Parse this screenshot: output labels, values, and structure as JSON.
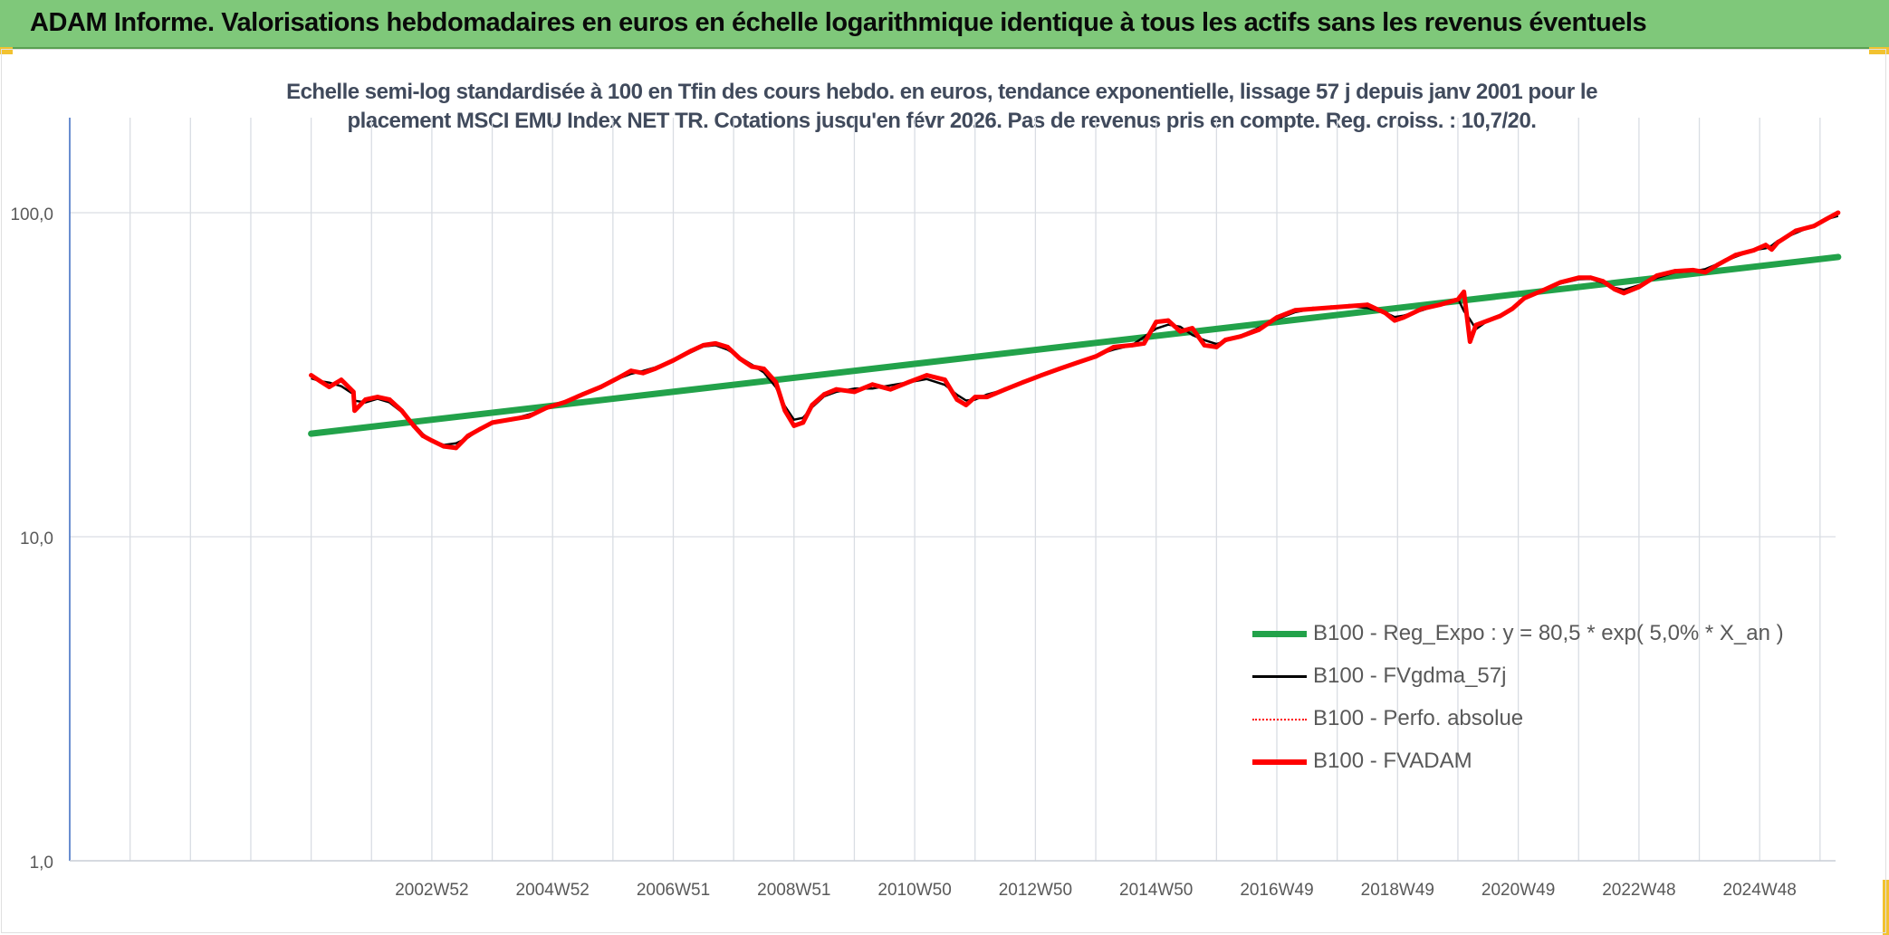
{
  "header": {
    "title": "ADAM Informe. Valorisations hebdomadaires en euros en échelle logarithmique identique à tous les actifs sans les revenus éventuels"
  },
  "colors": {
    "header_bg": "#7fc87a",
    "corner_accent": "#f2c230",
    "trend_green": "#22a24a",
    "smooth_black": "#000000",
    "adam_red": "#ff0000",
    "title_text": "#404a5c",
    "gridline": "#d9dde3",
    "y_axis_line": "#4472c4"
  },
  "chart_data": {
    "type": "line",
    "title_line1": "Echelle semi-log standardisée à 100 en Tfin des cours hebdo. en euros, tendance exponentielle, lissage 57 j depuis janv 2001 pour le",
    "title_line2": "placement MSCI EMU Index NET TR. Cotations jusqu'en févr 2026. Pas de revenus pris en compte. Reg. croiss. : 10,7/20.",
    "y_scale": "log",
    "ylim": [
      1,
      200
    ],
    "y_ticks": [
      {
        "value": 100,
        "label": "100,0"
      },
      {
        "value": 10,
        "label": "10,0"
      },
      {
        "value": 1,
        "label": "1,0"
      }
    ],
    "xlim": [
      1997.0,
      2026.3
    ],
    "x_tick_labels": [
      {
        "year": 2003.0,
        "label": "2002W52"
      },
      {
        "year": 2005.0,
        "label": "2004W52"
      },
      {
        "year": 2007.0,
        "label": "2006W51"
      },
      {
        "year": 2009.0,
        "label": "2008W51"
      },
      {
        "year": 2011.0,
        "label": "2010W50"
      },
      {
        "year": 2013.0,
        "label": "2012W50"
      },
      {
        "year": 2015.0,
        "label": "2014W50"
      },
      {
        "year": 2017.0,
        "label": "2016W49"
      },
      {
        "year": 2019.0,
        "label": "2018W49"
      },
      {
        "year": 2021.0,
        "label": "2020W49"
      },
      {
        "year": 2023.0,
        "label": "2022W48"
      },
      {
        "year": 2025.0,
        "label": "2024W48"
      }
    ],
    "grid_years": [
      1998,
      1999,
      2000,
      2001,
      2002,
      2003,
      2004,
      2005,
      2006,
      2007,
      2008,
      2009,
      2010,
      2011,
      2012,
      2013,
      2014,
      2015,
      2016,
      2017,
      2018,
      2019,
      2020,
      2021,
      2022,
      2023,
      2024,
      2025,
      2026
    ],
    "legend_position": "bottom-right",
    "series": [
      {
        "name": "B100 - Reg_Expo : y = 80,5 * exp( 5,0% *  X_an )",
        "style": "trend",
        "color": "#22a24a",
        "x": [
          2001.0,
          2026.3
        ],
        "values": [
          20.8,
          73.0
        ]
      },
      {
        "name": "B100 - FVgdma_57j",
        "style": "smooth",
        "color": "#000000"
      },
      {
        "name": "B100 - Perfo. absolue",
        "style": "dotted",
        "color": "#ff0000"
      },
      {
        "name": "B100 - FVADAM",
        "style": "main",
        "color": "#ff0000",
        "x": [
          2001.0,
          2001.15,
          2001.3,
          2001.5,
          2001.7,
          2001.72,
          2001.9,
          2002.1,
          2002.3,
          2002.5,
          2002.7,
          2002.85,
          2003.0,
          2003.2,
          2003.4,
          2003.6,
          2003.8,
          2004.0,
          2004.3,
          2004.6,
          2004.9,
          2005.2,
          2005.5,
          2005.8,
          2006.1,
          2006.3,
          2006.5,
          2006.7,
          2007.0,
          2007.3,
          2007.5,
          2007.7,
          2007.9,
          2008.1,
          2008.3,
          2008.5,
          2008.7,
          2008.85,
          2009.0,
          2009.15,
          2009.3,
          2009.5,
          2009.7,
          2010.0,
          2010.3,
          2010.6,
          2010.9,
          2011.2,
          2011.5,
          2011.7,
          2011.85,
          2012.0,
          2012.2,
          2012.5,
          2012.8,
          2013.1,
          2013.4,
          2013.7,
          2014.0,
          2014.3,
          2014.6,
          2014.8,
          2015.0,
          2015.2,
          2015.4,
          2015.6,
          2015.8,
          2016.0,
          2016.15,
          2016.4,
          2016.7,
          2017.0,
          2017.3,
          2017.6,
          2017.9,
          2018.2,
          2018.5,
          2018.8,
          2018.95,
          2019.1,
          2019.4,
          2019.7,
          2020.0,
          2020.1,
          2020.2,
          2020.3,
          2020.5,
          2020.7,
          2020.9,
          2021.1,
          2021.4,
          2021.7,
          2022.0,
          2022.2,
          2022.4,
          2022.6,
          2022.75,
          2023.0,
          2023.3,
          2023.6,
          2023.9,
          2024.1,
          2024.3,
          2024.6,
          2024.9,
          2025.1,
          2025.2,
          2025.3,
          2025.6,
          2025.9,
          2026.1,
          2026.3
        ],
        "values": [
          31.5,
          30.2,
          29.0,
          30.5,
          28.0,
          24.5,
          26.5,
          27.0,
          26.5,
          24.5,
          22.0,
          20.5,
          19.8,
          19.0,
          18.8,
          20.5,
          21.5,
          22.5,
          23.0,
          23.5,
          25.0,
          26.0,
          27.5,
          29.0,
          31.0,
          32.5,
          32.0,
          33.0,
          35.0,
          37.5,
          39.0,
          39.5,
          38.5,
          35.5,
          33.5,
          33.0,
          30.0,
          24.5,
          22.0,
          22.5,
          25.5,
          27.5,
          28.5,
          28.0,
          29.5,
          28.5,
          30.0,
          31.5,
          30.5,
          26.5,
          25.5,
          27.0,
          27.0,
          28.5,
          30.0,
          31.5,
          33.0,
          34.5,
          36.0,
          38.5,
          39.0,
          39.5,
          46.0,
          46.5,
          43.0,
          44.0,
          39.0,
          38.5,
          40.5,
          41.5,
          43.5,
          47.5,
          50.0,
          50.5,
          51.0,
          51.5,
          52.0,
          49.0,
          46.5,
          47.5,
          50.5,
          52.0,
          54.0,
          57.0,
          40.0,
          45.0,
          46.5,
          48.0,
          50.5,
          54.5,
          57.5,
          61.0,
          63.0,
          63.0,
          61.5,
          58.0,
          56.5,
          59.0,
          64.0,
          66.0,
          66.5,
          65.5,
          69.0,
          74.0,
          76.5,
          79.5,
          77.0,
          81.0,
          88.0,
          91.0,
          95.5,
          100.0
        ]
      }
    ]
  }
}
